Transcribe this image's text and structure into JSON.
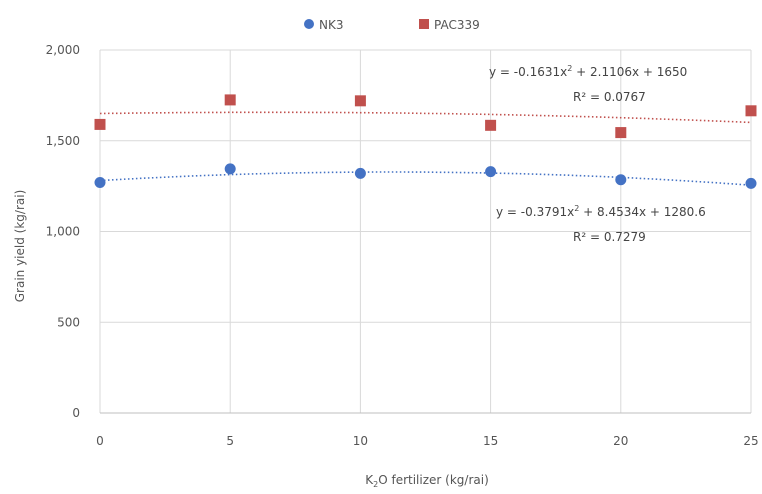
{
  "chart_data": {
    "type": "scatter",
    "title": "",
    "xlabel": "K2O fertilizer (kg/rai)",
    "xlabel_parts": {
      "pre": "K",
      "sub": "2",
      "post": "O fertilizer (kg/rai)"
    },
    "ylabel": "Grain yield (kg/rai)",
    "xlim": [
      0,
      25
    ],
    "ylim": [
      0,
      2000
    ],
    "x_ticks": [
      "0",
      "5",
      "10",
      "15",
      "20",
      "25"
    ],
    "y_ticks": [
      "0",
      "500",
      "1,000",
      "1,500",
      "2,000"
    ],
    "grid": "horizontal",
    "legend_position": "top-center",
    "x": [
      0,
      5,
      10,
      15,
      20,
      25
    ],
    "series": [
      {
        "name": "NK3",
        "color": "#4472c4",
        "marker": "circle",
        "values": [
          1270,
          1345,
          1320,
          1330,
          1285,
          1265
        ],
        "trendline": {
          "type": "polynomial",
          "coefficients": [
            -0.3791,
            8.4534,
            1280.6
          ],
          "equation": "y = -0.3791x2 + 8.4534x + 1280.6",
          "r2_label": "R² = 0.7279"
        }
      },
      {
        "name": "PAC339",
        "color": "#c0504d",
        "marker": "square",
        "values": [
          1590,
          1725,
          1720,
          1585,
          1545,
          1665
        ],
        "trendline": {
          "type": "polynomial",
          "coefficients": [
            -0.1631,
            2.1106,
            1650
          ],
          "equation": "y = -0.1631x2 + 2.1106x + 1650",
          "r2_label": "R² = 0.0767"
        }
      }
    ]
  }
}
